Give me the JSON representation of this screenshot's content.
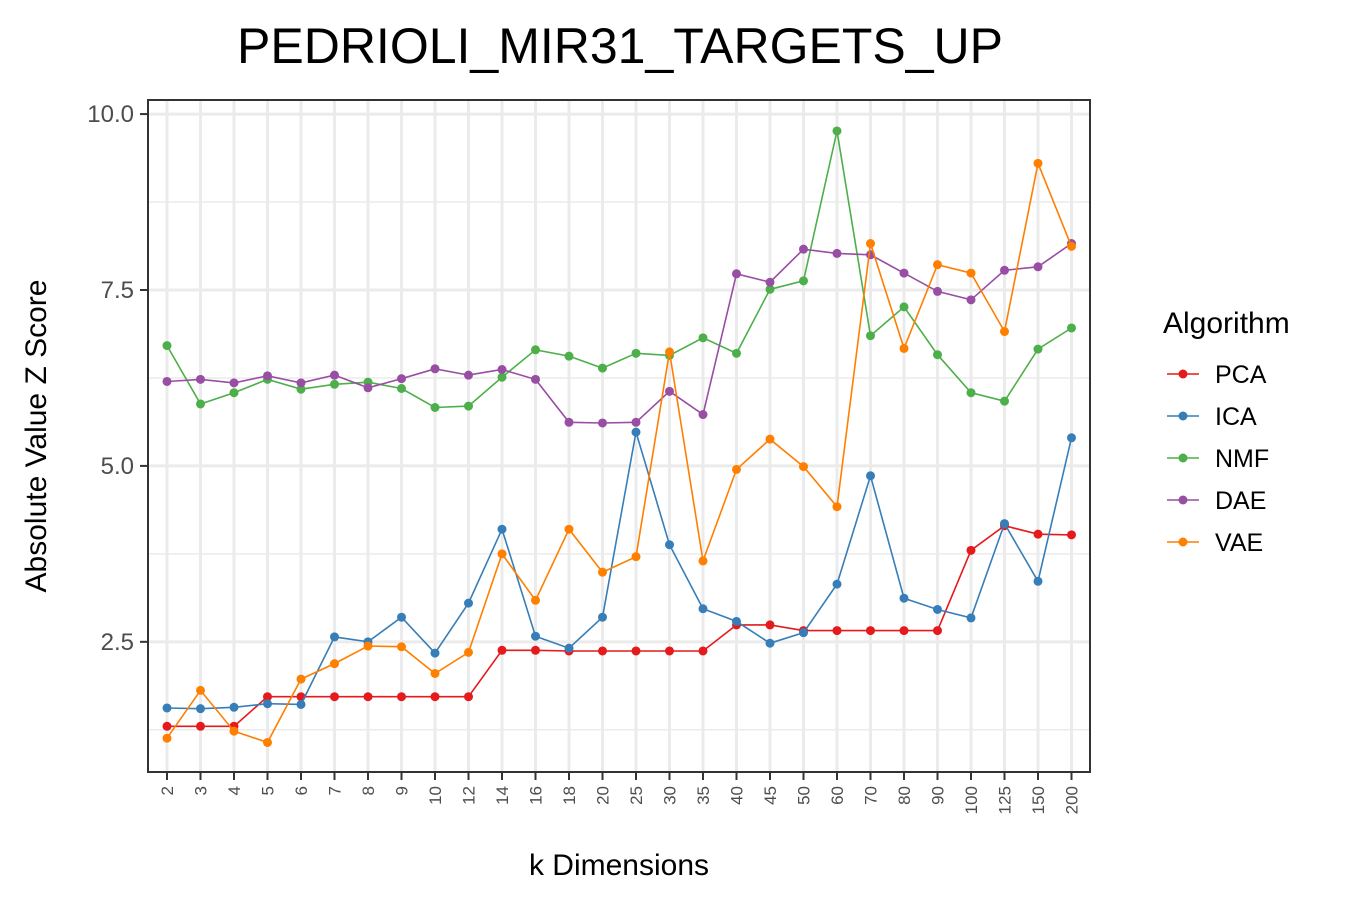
{
  "chart_data": {
    "type": "line",
    "title": "PEDRIOLI_MIR31_TARGETS_UP",
    "xlabel": "k Dimensions",
    "ylabel": "Absolute Value Z Score",
    "categories": [
      "2",
      "3",
      "4",
      "5",
      "6",
      "7",
      "8",
      "9",
      "10",
      "12",
      "14",
      "16",
      "18",
      "20",
      "25",
      "30",
      "35",
      "40",
      "45",
      "50",
      "60",
      "70",
      "80",
      "90",
      "100",
      "125",
      "150",
      "200"
    ],
    "yticks": [
      "2.5",
      "5.0",
      "7.5",
      "10.0"
    ],
    "ylim": [
      0.65,
      10.2
    ],
    "grid": true,
    "legend": {
      "title": "Algorithm",
      "position": "right"
    },
    "series": [
      {
        "name": "PCA",
        "color": "#E41A1C",
        "values": [
          1.3,
          1.3,
          1.3,
          1.72,
          1.72,
          1.72,
          1.72,
          1.72,
          1.72,
          1.72,
          2.38,
          2.38,
          2.37,
          2.37,
          2.37,
          2.37,
          2.37,
          2.74,
          2.74,
          2.66,
          2.66,
          2.66,
          2.66,
          2.66,
          3.8,
          4.15,
          4.03,
          4.02
        ]
      },
      {
        "name": "ICA",
        "color": "#377EB8",
        "values": [
          1.56,
          1.55,
          1.57,
          1.62,
          1.61,
          2.57,
          2.5,
          2.85,
          2.34,
          3.05,
          4.1,
          2.58,
          2.41,
          2.85,
          5.48,
          3.88,
          2.97,
          2.79,
          2.48,
          2.63,
          3.32,
          4.86,
          3.12,
          2.96,
          2.84,
          4.18,
          3.36,
          5.4
        ]
      },
      {
        "name": "NMF",
        "color": "#4DAF4A",
        "values": [
          6.71,
          5.88,
          6.04,
          6.23,
          6.09,
          6.16,
          6.19,
          6.1,
          5.83,
          5.85,
          6.26,
          6.65,
          6.56,
          6.39,
          6.6,
          6.57,
          6.82,
          6.6,
          7.51,
          7.63,
          9.76,
          6.85,
          7.26,
          6.58,
          6.04,
          5.92,
          6.66,
          6.96
        ]
      },
      {
        "name": "DAE",
        "color": "#984EA3",
        "values": [
          6.2,
          6.23,
          6.18,
          6.28,
          6.18,
          6.29,
          6.11,
          6.24,
          6.38,
          6.29,
          6.37,
          6.23,
          5.62,
          5.61,
          5.62,
          6.06,
          5.73,
          7.73,
          7.61,
          8.08,
          8.02,
          8.0,
          7.74,
          7.48,
          7.36,
          7.78,
          7.83,
          8.16
        ]
      },
      {
        "name": "VAE",
        "color": "#FF7F00",
        "values": [
          1.13,
          1.81,
          1.23,
          1.07,
          1.97,
          2.19,
          2.44,
          2.43,
          2.05,
          2.35,
          3.75,
          3.09,
          4.1,
          3.49,
          3.71,
          6.62,
          3.65,
          4.95,
          5.38,
          4.99,
          4.42,
          8.16,
          6.67,
          7.86,
          7.74,
          6.91,
          9.3,
          8.12
        ]
      }
    ]
  }
}
